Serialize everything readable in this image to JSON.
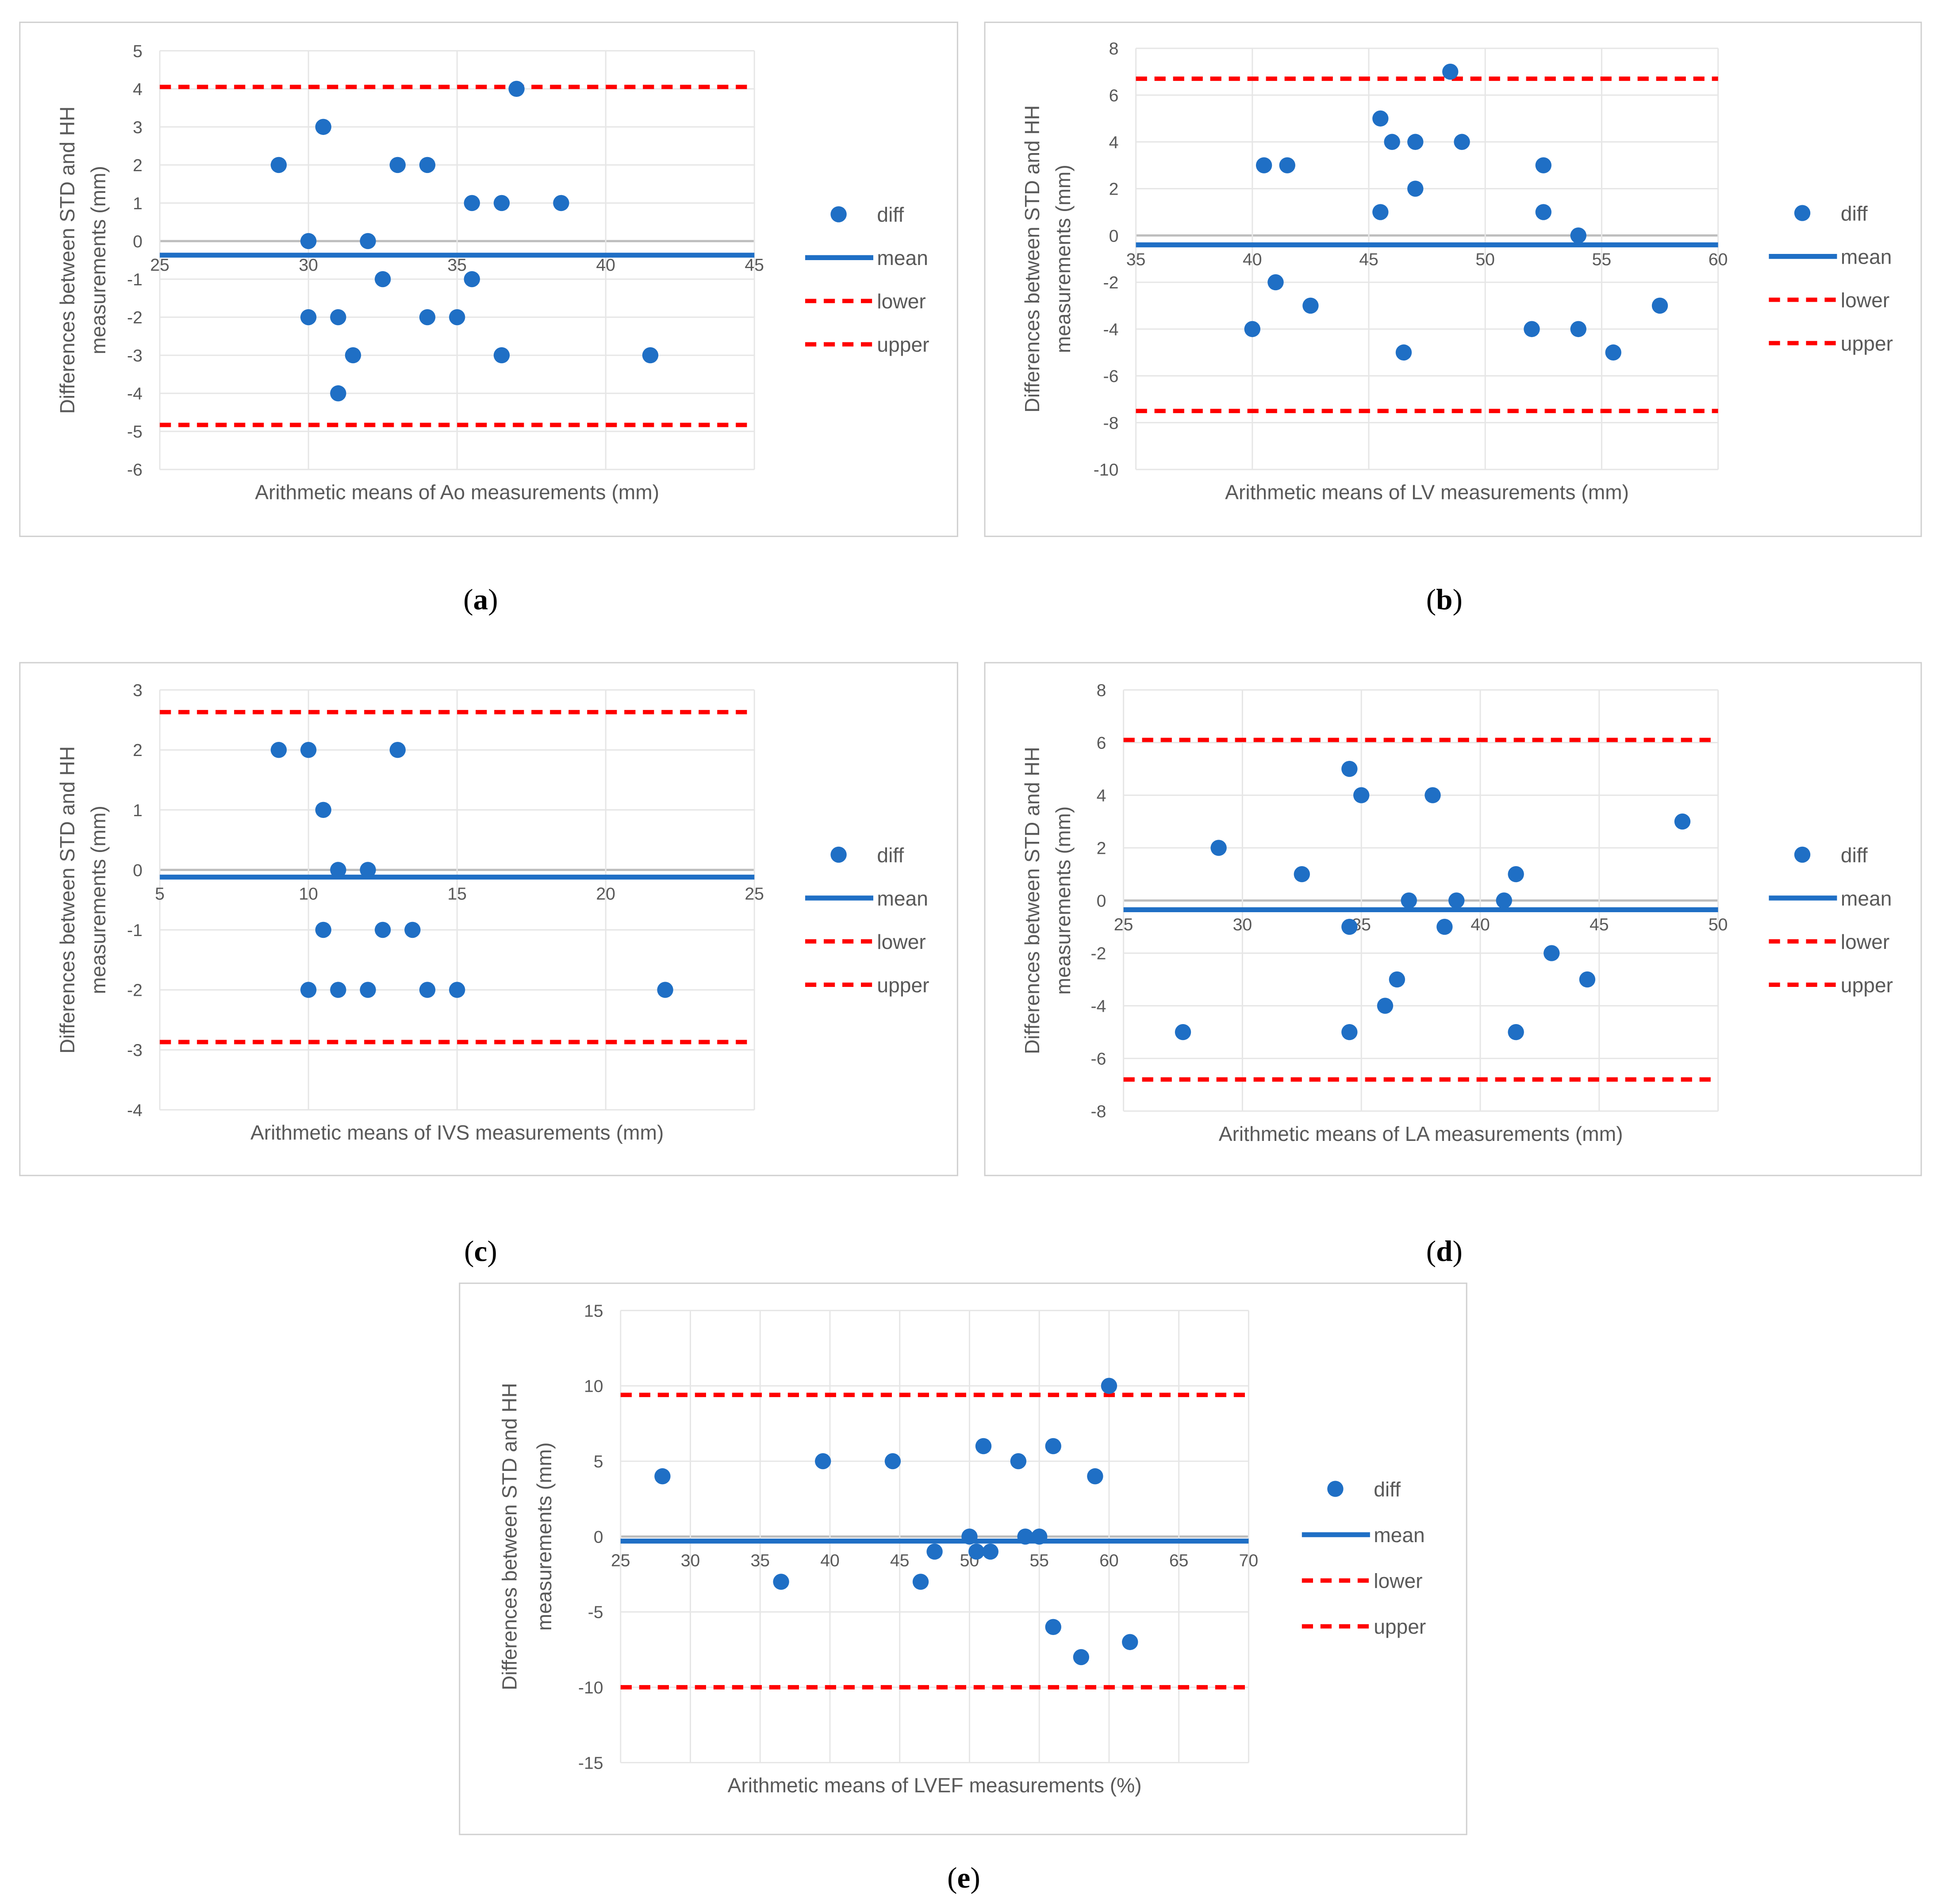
{
  "chart_data": [
    {
      "type": "scatter",
      "panel_label": "(a)",
      "xlabel": "Arithmetic means of Ao measurements (mm)",
      "ylabel": [
        "Differences between STD and HH",
        "measurements (mm)"
      ],
      "xlim": [
        25,
        45
      ],
      "xticks": [
        25,
        30,
        35,
        40,
        45
      ],
      "ylim": [
        -6,
        5
      ],
      "yticks": [
        -6,
        -5,
        -4,
        -3,
        -2,
        -1,
        0,
        1,
        2,
        3,
        4,
        5
      ],
      "grid": true,
      "legend_position": "right",
      "legend": [
        "diff",
        "mean",
        "lower",
        "upper"
      ],
      "lines": {
        "mean": -0.37,
        "lower": -4.83,
        "upper": 4.05
      },
      "points": [
        [
          29,
          2
        ],
        [
          30,
          0
        ],
        [
          30,
          -2
        ],
        [
          30.5,
          3
        ],
        [
          31,
          -2
        ],
        [
          31,
          -4
        ],
        [
          31.5,
          -3
        ],
        [
          32,
          0
        ],
        [
          32.5,
          -1
        ],
        [
          33,
          2
        ],
        [
          34,
          2
        ],
        [
          34,
          -2
        ],
        [
          35,
          -2
        ],
        [
          35.5,
          1
        ],
        [
          35.5,
          -1
        ],
        [
          36.5,
          1
        ],
        [
          36.5,
          -3
        ],
        [
          37,
          4
        ],
        [
          38.5,
          1
        ],
        [
          41.5,
          -3
        ]
      ]
    },
    {
      "type": "scatter",
      "panel_label": "(b)",
      "xlabel": "Arithmetic means of LV measurements (mm)",
      "ylabel": [
        "Differences between STD and HH",
        "measurements (mm)"
      ],
      "xlim": [
        35,
        60
      ],
      "xticks": [
        35,
        40,
        45,
        50,
        55,
        60
      ],
      "ylim": [
        -10,
        8
      ],
      "yticks": [
        -10,
        -8,
        -6,
        -4,
        -2,
        0,
        2,
        4,
        6,
        8
      ],
      "grid": true,
      "legend_position": "right",
      "legend": [
        "diff",
        "mean",
        "lower",
        "upper"
      ],
      "lines": {
        "mean": -0.4,
        "lower": -7.5,
        "upper": 6.7
      },
      "points": [
        [
          40,
          -4
        ],
        [
          40.5,
          3
        ],
        [
          41,
          -2
        ],
        [
          41.5,
          3
        ],
        [
          42.5,
          -3
        ],
        [
          45.5,
          5
        ],
        [
          45.5,
          1
        ],
        [
          46,
          4
        ],
        [
          46.5,
          -5
        ],
        [
          47,
          4
        ],
        [
          47,
          2
        ],
        [
          48.5,
          7
        ],
        [
          49,
          4
        ],
        [
          52,
          -4
        ],
        [
          52.5,
          3
        ],
        [
          52.5,
          1
        ],
        [
          54,
          0
        ],
        [
          54,
          -4
        ],
        [
          55.5,
          -5
        ],
        [
          57.5,
          -3
        ]
      ]
    },
    {
      "type": "scatter",
      "panel_label": "(c)",
      "xlabel": "Arithmetic means of IVS measurements (mm)",
      "ylabel": [
        "Differences between STD and HH",
        "measurements (mm)"
      ],
      "xlim": [
        5,
        25
      ],
      "xticks": [
        5,
        10,
        15,
        20,
        25
      ],
      "ylim": [
        -4,
        3
      ],
      "yticks": [
        -4,
        -3,
        -2,
        -1,
        0,
        1,
        2,
        3
      ],
      "grid": true,
      "legend_position": "right",
      "legend": [
        "diff",
        "mean",
        "lower",
        "upper"
      ],
      "lines": {
        "mean": -0.12,
        "lower": -2.87,
        "upper": 2.63
      },
      "points": [
        [
          9,
          2
        ],
        [
          10,
          2
        ],
        [
          10,
          -2
        ],
        [
          10.5,
          1
        ],
        [
          10.5,
          -1
        ],
        [
          11,
          0
        ],
        [
          11,
          -2
        ],
        [
          12,
          0
        ],
        [
          12,
          -2
        ],
        [
          12.5,
          -1
        ],
        [
          13,
          2
        ],
        [
          13.5,
          -1
        ],
        [
          14,
          -2
        ],
        [
          15,
          -2
        ],
        [
          22,
          -2
        ]
      ]
    },
    {
      "type": "scatter",
      "panel_label": "(d)",
      "xlabel": "Arithmetic means of LA measurements (mm)",
      "ylabel": [
        "Differences between STD and HH",
        "measurements (mm)"
      ],
      "xlim": [
        25,
        50
      ],
      "xticks": [
        25,
        30,
        35,
        40,
        45,
        50
      ],
      "ylim": [
        -8,
        8
      ],
      "yticks": [
        -8,
        -6,
        -4,
        -2,
        0,
        2,
        4,
        6,
        8
      ],
      "grid": true,
      "legend_position": "right",
      "legend": [
        "diff",
        "mean",
        "lower",
        "upper"
      ],
      "lines": {
        "mean": -0.35,
        "lower": -6.8,
        "upper": 6.1
      },
      "points": [
        [
          27.5,
          -5
        ],
        [
          29,
          2
        ],
        [
          32.5,
          1
        ],
        [
          34.5,
          5
        ],
        [
          34.5,
          -1
        ],
        [
          34.5,
          -5
        ],
        [
          35,
          4
        ],
        [
          36,
          -4
        ],
        [
          36.5,
          -3
        ],
        [
          37,
          0
        ],
        [
          38,
          4
        ],
        [
          38.5,
          -1
        ],
        [
          39,
          0
        ],
        [
          41,
          0
        ],
        [
          41.5,
          1
        ],
        [
          41.5,
          -5
        ],
        [
          43,
          -2
        ],
        [
          44.5,
          -3
        ],
        [
          48.5,
          3
        ]
      ]
    },
    {
      "type": "scatter",
      "panel_label": "(e)",
      "xlabel": "Arithmetic means of LVEF measurements (%)",
      "ylabel": [
        "Differences between STD and HH",
        "measurements (mm)"
      ],
      "xlim": [
        25,
        70
      ],
      "xticks": [
        25,
        30,
        35,
        40,
        45,
        50,
        55,
        60,
        65,
        70
      ],
      "ylim": [
        -15,
        15
      ],
      "yticks": [
        -15,
        -10,
        -5,
        0,
        5,
        10,
        15
      ],
      "grid": true,
      "legend_position": "right",
      "legend": [
        "diff",
        "mean",
        "lower",
        "upper"
      ],
      "lines": {
        "mean": -0.3,
        "lower": -10,
        "upper": 9.4
      },
      "points": [
        [
          28,
          4
        ],
        [
          36.5,
          -3
        ],
        [
          39.5,
          5
        ],
        [
          44.5,
          5
        ],
        [
          46.5,
          -3
        ],
        [
          47.5,
          -1
        ],
        [
          50,
          0
        ],
        [
          50.5,
          -1
        ],
        [
          51,
          6
        ],
        [
          51.5,
          -1
        ],
        [
          53.5,
          5
        ],
        [
          54,
          0
        ],
        [
          55,
          0
        ],
        [
          56,
          6
        ],
        [
          56,
          -6
        ],
        [
          58,
          -8
        ],
        [
          59,
          4
        ],
        [
          60,
          10
        ],
        [
          61.5,
          -7
        ]
      ]
    }
  ]
}
